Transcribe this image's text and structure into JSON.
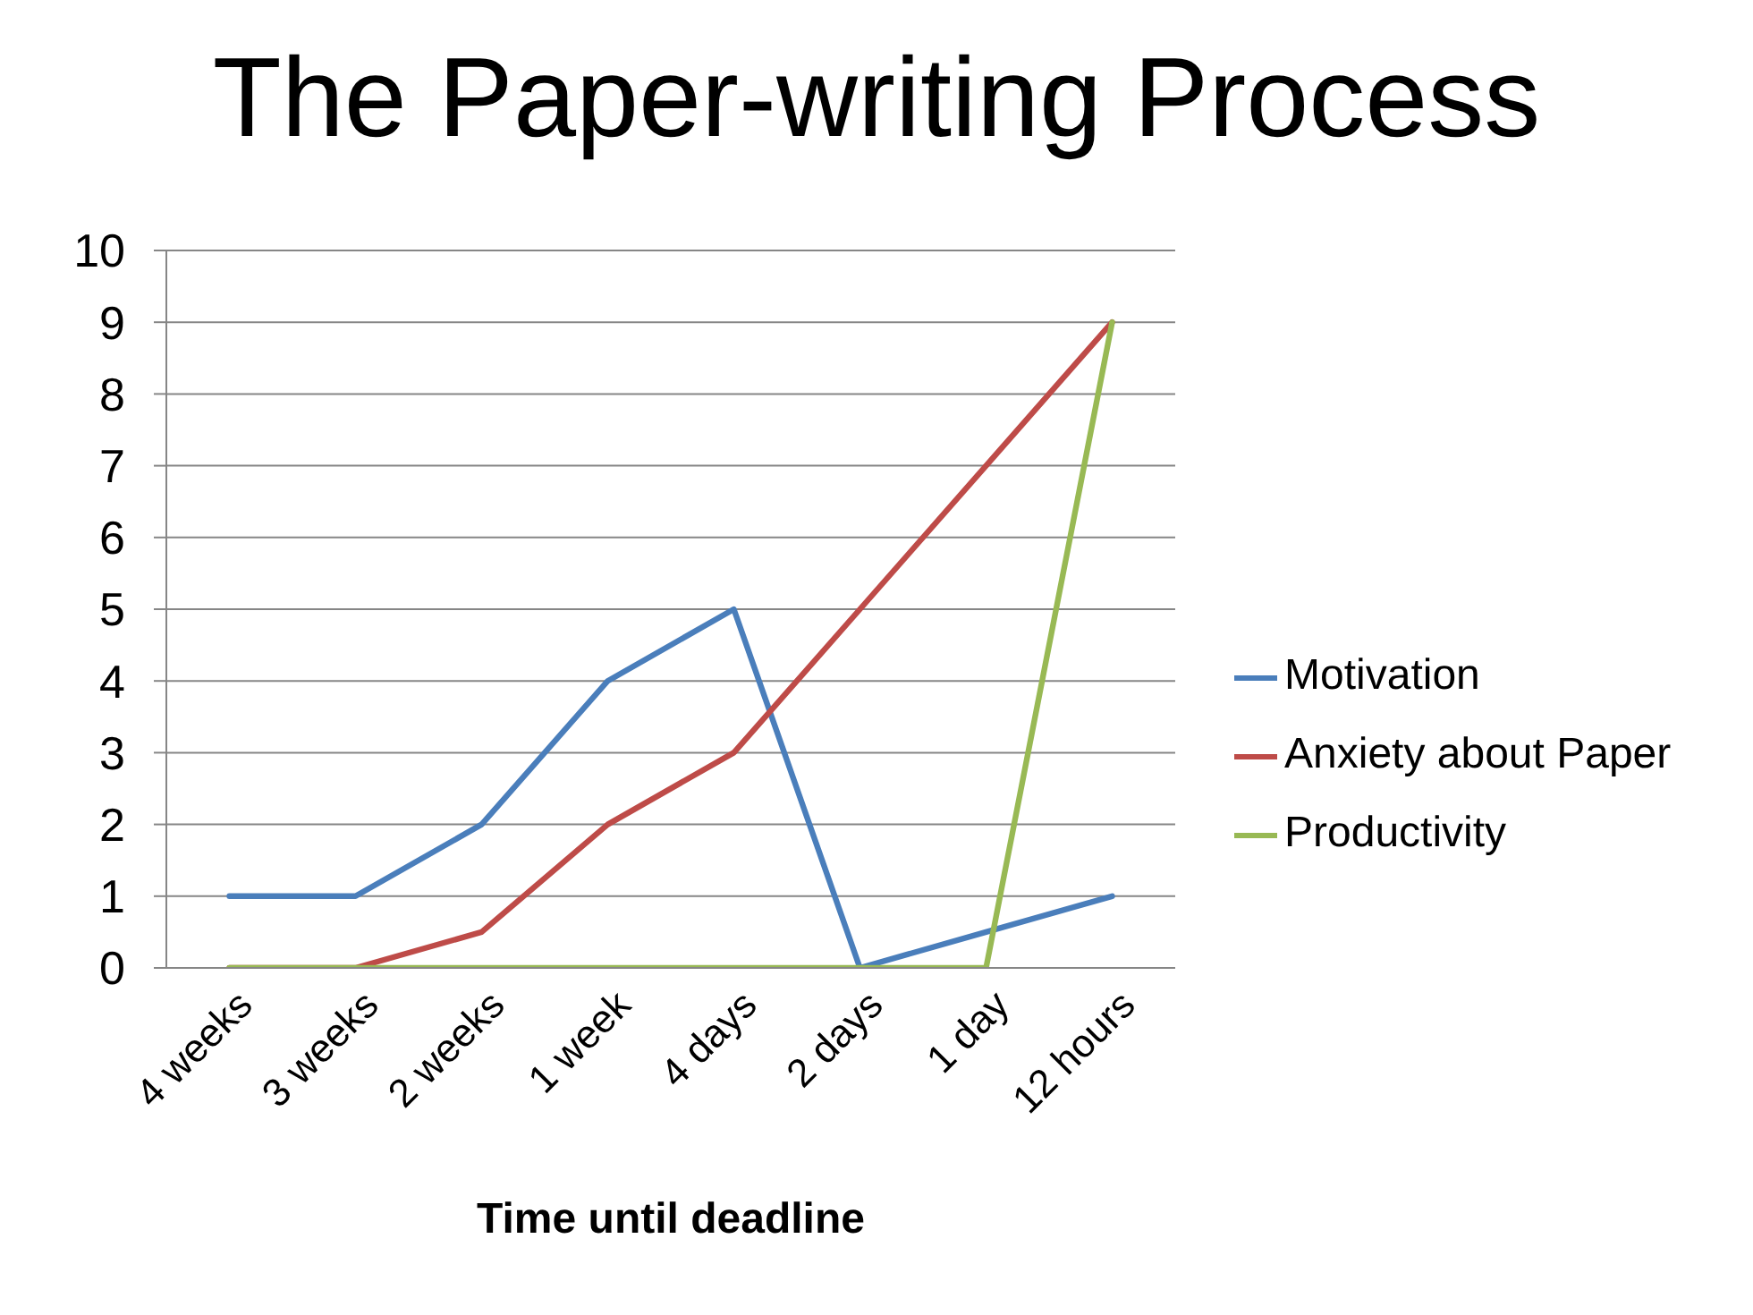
{
  "chart_data": {
    "type": "line",
    "title": "The Paper-writing Process",
    "xlabel": "Time until deadline",
    "categories": [
      "4 weeks",
      "3 weeks",
      "2 weeks",
      "1 week",
      "4 days",
      "2 days",
      "1 day",
      "12 hours"
    ],
    "series": [
      {
        "name": "Motivation",
        "color": "#4a7ebb",
        "values": [
          1,
          1,
          2,
          4,
          5,
          0,
          0.5,
          1
        ]
      },
      {
        "name": "Anxiety about Paper",
        "color": "#be4b48",
        "values": [
          0,
          0,
          0.5,
          2,
          3,
          5,
          7,
          9
        ]
      },
      {
        "name": "Productivity",
        "color": "#98b954",
        "values": [
          0,
          0,
          0,
          0,
          0,
          0,
          0,
          9
        ]
      }
    ],
    "ylim": [
      0,
      10
    ],
    "yticks": [
      0,
      1,
      2,
      3,
      4,
      5,
      6,
      7,
      8,
      9,
      10
    ],
    "grid": "y",
    "legend": "right",
    "marker": "none",
    "line_style": "solid"
  }
}
